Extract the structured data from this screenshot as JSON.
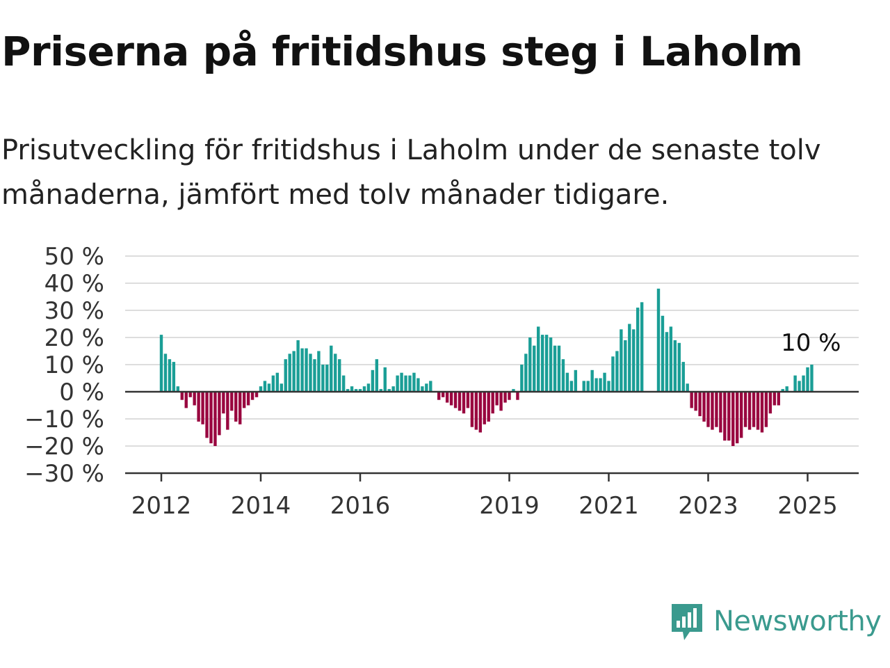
{
  "chart_data": {
    "type": "bar",
    "title": "Priserna på fritidshus steg i Laholm",
    "subtitle": "Prisutveckling för fritidshus i Laholm under de senaste tolv månaderna, jämfört med tolv månader tidigare.",
    "ylim": [
      -30,
      50
    ],
    "yticks": [
      50,
      40,
      30,
      20,
      10,
      0,
      -10,
      -20,
      -30
    ],
    "ytick_labels": [
      "50 %",
      "40 %",
      "30 %",
      "20 %",
      "10 %",
      "0 %",
      "−10 %",
      "−20 %",
      "−30 %"
    ],
    "xticks": [
      2012,
      2014,
      2016,
      2019,
      2021,
      2023,
      2025
    ],
    "xtick_labels": [
      "2012",
      "2014",
      "2016",
      "2019",
      "2021",
      "2023",
      "2025"
    ],
    "grid": true,
    "colors": {
      "positive": "#1a9e96",
      "negative": "#99063f",
      "grid": "#dddddd",
      "axis": "#333333"
    },
    "x_start": 2012.0,
    "x_step_months": 1,
    "values": [
      21,
      14,
      12,
      11,
      2,
      -3,
      -6,
      -2,
      -5,
      -11,
      -12,
      -17,
      -19,
      -20,
      -16,
      -8,
      -14,
      -7,
      -11,
      -12,
      -6,
      -5,
      -3,
      -2,
      2,
      4,
      3,
      6,
      7,
      3,
      12,
      14,
      15,
      19,
      16,
      16,
      14,
      12,
      15,
      10,
      10,
      17,
      14,
      12,
      6,
      1,
      2,
      1,
      1,
      2,
      3,
      8,
      12,
      1,
      9,
      1,
      2,
      6,
      7,
      6,
      6,
      7,
      5,
      2,
      3,
      4,
      0,
      -3,
      -2,
      -4,
      -5,
      -6,
      -7,
      -8,
      -6,
      -13,
      -14,
      -15,
      -12,
      -11,
      -8,
      -5,
      -7,
      -4,
      -3,
      1,
      -3,
      10,
      14,
      20,
      17,
      24,
      21,
      21,
      20,
      17,
      17,
      12,
      7,
      4,
      8,
      0,
      4,
      4,
      8,
      5,
      5,
      7,
      4,
      13,
      15,
      23,
      19,
      25,
      23,
      31,
      33,
      null,
      null,
      null,
      38,
      28,
      22,
      24,
      19,
      18,
      11,
      3,
      -6,
      -7,
      -9,
      -11,
      -13,
      -14,
      -13,
      -15,
      -18,
      -18,
      -20,
      -19,
      -17,
      -13,
      -14,
      -13,
      -14,
      -15,
      -13,
      -8,
      -5,
      -5,
      1,
      2,
      0,
      6,
      4,
      6,
      9,
      10
    ],
    "last_value_label": "10 %"
  },
  "brand": {
    "name": "Newsworthy",
    "icon": "chart-bubble-icon",
    "color": "#3a9a8e"
  }
}
